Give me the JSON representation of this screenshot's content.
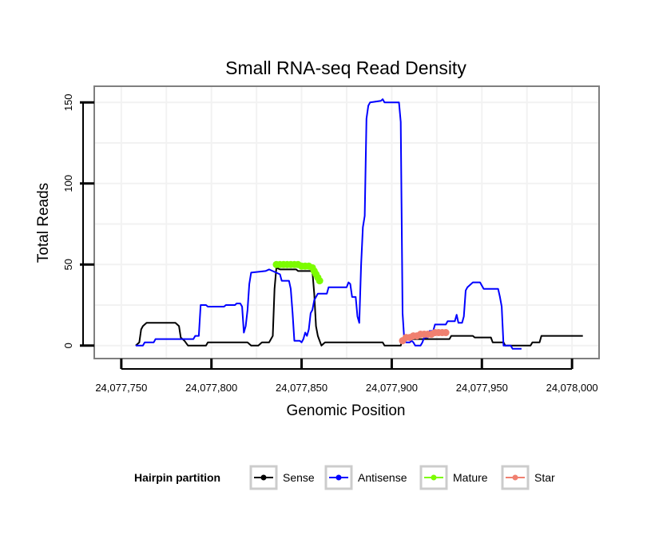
{
  "chart_data": {
    "type": "line",
    "title": "Small RNA-seq Read Density",
    "xlabel": "Genomic Position",
    "ylabel": "Total Reads",
    "xlim": [
      24077735,
      24078015
    ],
    "ylim": [
      -8,
      160
    ],
    "x_ticks": [
      24077750,
      24077800,
      24077850,
      24077900,
      24077950,
      24078000
    ],
    "x_tick_labels": [
      "24,077,750",
      "24,077,800",
      "24,077,850",
      "24,077,900",
      "24,077,950",
      "24,078,000"
    ],
    "y_ticks": [
      0,
      50,
      100,
      150
    ],
    "y_tick_labels": [
      "0",
      "50",
      "100",
      "150"
    ],
    "grid": true,
    "legend": {
      "title": "Hairpin partition",
      "placement": "bottom",
      "items": [
        "Sense",
        "Antisense",
        "Mature",
        "Star"
      ]
    },
    "series": [
      {
        "name": "Sense",
        "color": "#000000",
        "style": "line",
        "points": [
          [
            24077758,
            0
          ],
          [
            24077760,
            2
          ],
          [
            24077761,
            10
          ],
          [
            24077762,
            12
          ],
          [
            24077764,
            14
          ],
          [
            24077780,
            14
          ],
          [
            24077782,
            12
          ],
          [
            24077783,
            5
          ],
          [
            24077785,
            3
          ],
          [
            24077787,
            0
          ],
          [
            24077797,
            0
          ],
          [
            24077798,
            2
          ],
          [
            24077820,
            2
          ],
          [
            24077822,
            0
          ],
          [
            24077826,
            0
          ],
          [
            24077828,
            2
          ],
          [
            24077832,
            2
          ],
          [
            24077834,
            6
          ],
          [
            24077835,
            35
          ],
          [
            24077836,
            48
          ],
          [
            24077838,
            47
          ],
          [
            24077847,
            47
          ],
          [
            24077848,
            46
          ],
          [
            24077856,
            46
          ],
          [
            24077857,
            32
          ],
          [
            24077858,
            12
          ],
          [
            24077859,
            6
          ],
          [
            24077861,
            0
          ],
          [
            24077863,
            2
          ],
          [
            24077895,
            2
          ],
          [
            24077896,
            0
          ],
          [
            24077905,
            0
          ],
          [
            24077906,
            4
          ],
          [
            24077932,
            4
          ],
          [
            24077933,
            6
          ],
          [
            24077945,
            6
          ],
          [
            24077946,
            5
          ],
          [
            24077955,
            5
          ],
          [
            24077956,
            2
          ],
          [
            24077962,
            2
          ],
          [
            24077963,
            0
          ],
          [
            24077977,
            0
          ],
          [
            24077978,
            2
          ],
          [
            24077982,
            2
          ],
          [
            24077983,
            6
          ],
          [
            24078006,
            6
          ]
        ]
      },
      {
        "name": "Antisense",
        "color": "#0000ff",
        "style": "line",
        "points": [
          [
            24077758,
            0
          ],
          [
            24077762,
            0
          ],
          [
            24077763,
            2
          ],
          [
            24077768,
            2
          ],
          [
            24077769,
            4
          ],
          [
            24077790,
            4
          ],
          [
            24077791,
            6
          ],
          [
            24077793,
            6
          ],
          [
            24077794,
            25
          ],
          [
            24077797,
            25
          ],
          [
            24077798,
            24
          ],
          [
            24077807,
            24
          ],
          [
            24077808,
            25
          ],
          [
            24077813,
            25
          ],
          [
            24077814,
            26
          ],
          [
            24077816,
            26
          ],
          [
            24077817,
            24
          ],
          [
            24077818,
            8
          ],
          [
            24077819,
            12
          ],
          [
            24077820,
            22
          ],
          [
            24077821,
            38
          ],
          [
            24077822,
            45
          ],
          [
            24077830,
            46
          ],
          [
            24077832,
            47
          ],
          [
            24077838,
            44
          ],
          [
            24077839,
            40
          ],
          [
            24077843,
            40
          ],
          [
            24077844,
            35
          ],
          [
            24077845,
            20
          ],
          [
            24077846,
            3
          ],
          [
            24077849,
            3
          ],
          [
            24077850,
            2
          ],
          [
            24077851,
            4
          ],
          [
            24077852,
            8
          ],
          [
            24077853,
            6
          ],
          [
            24077854,
            10
          ],
          [
            24077855,
            20
          ],
          [
            24077856,
            22
          ],
          [
            24077857,
            28
          ],
          [
            24077858,
            30
          ],
          [
            24077859,
            32
          ],
          [
            24077864,
            32
          ],
          [
            24077865,
            36
          ],
          [
            24077875,
            36
          ],
          [
            24077876,
            39
          ],
          [
            24077877,
            38
          ],
          [
            24077878,
            30
          ],
          [
            24077880,
            30
          ],
          [
            24077881,
            18
          ],
          [
            24077882,
            14
          ],
          [
            24077883,
            50
          ],
          [
            24077884,
            73
          ],
          [
            24077885,
            80
          ],
          [
            24077886,
            140
          ],
          [
            24077887,
            148
          ],
          [
            24077888,
            150
          ],
          [
            24077894,
            151
          ],
          [
            24077895,
            152
          ],
          [
            24077896,
            150
          ],
          [
            24077904,
            150
          ],
          [
            24077905,
            138
          ],
          [
            24077906,
            20
          ],
          [
            24077907,
            3
          ],
          [
            24077908,
            2
          ],
          [
            24077910,
            2
          ],
          [
            24077911,
            3
          ],
          [
            24077912,
            2
          ],
          [
            24077913,
            0
          ],
          [
            24077916,
            0
          ],
          [
            24077917,
            2
          ],
          [
            24077918,
            5
          ],
          [
            24077920,
            5
          ],
          [
            24077921,
            9
          ],
          [
            24077923,
            9
          ],
          [
            24077924,
            13
          ],
          [
            24077930,
            13
          ],
          [
            24077931,
            15
          ],
          [
            24077935,
            15
          ],
          [
            24077936,
            19
          ],
          [
            24077937,
            14
          ],
          [
            24077939,
            14
          ],
          [
            24077940,
            18
          ],
          [
            24077941,
            34
          ],
          [
            24077942,
            36
          ],
          [
            24077945,
            39
          ],
          [
            24077949,
            39
          ],
          [
            24077950,
            37
          ],
          [
            24077951,
            35
          ],
          [
            24077959,
            35
          ],
          [
            24077960,
            30
          ],
          [
            24077961,
            24
          ],
          [
            24077962,
            0
          ],
          [
            24077966,
            0
          ],
          [
            24077967,
            -2
          ],
          [
            24077972,
            -2
          ]
        ]
      },
      {
        "name": "Mature",
        "color": "#7cfc00",
        "style": "points",
        "points": [
          [
            24077836,
            50
          ],
          [
            24077838,
            50
          ],
          [
            24077840,
            50
          ],
          [
            24077842,
            50
          ],
          [
            24077844,
            50
          ],
          [
            24077846,
            50
          ],
          [
            24077848,
            50
          ],
          [
            24077850,
            49
          ],
          [
            24077852,
            49
          ],
          [
            24077854,
            49
          ],
          [
            24077856,
            48
          ],
          [
            24077857,
            46
          ],
          [
            24077858,
            44
          ],
          [
            24077859,
            42
          ],
          [
            24077860,
            40
          ]
        ]
      },
      {
        "name": "Star",
        "color": "#f08070",
        "style": "points",
        "points": [
          [
            24077906,
            3
          ],
          [
            24077908,
            5
          ],
          [
            24077910,
            5
          ],
          [
            24077912,
            6
          ],
          [
            24077914,
            6
          ],
          [
            24077916,
            7
          ],
          [
            24077918,
            7
          ],
          [
            24077920,
            7
          ],
          [
            24077922,
            7
          ],
          [
            24077924,
            8
          ],
          [
            24077926,
            8
          ],
          [
            24077928,
            8
          ],
          [
            24077930,
            8
          ]
        ]
      }
    ]
  }
}
